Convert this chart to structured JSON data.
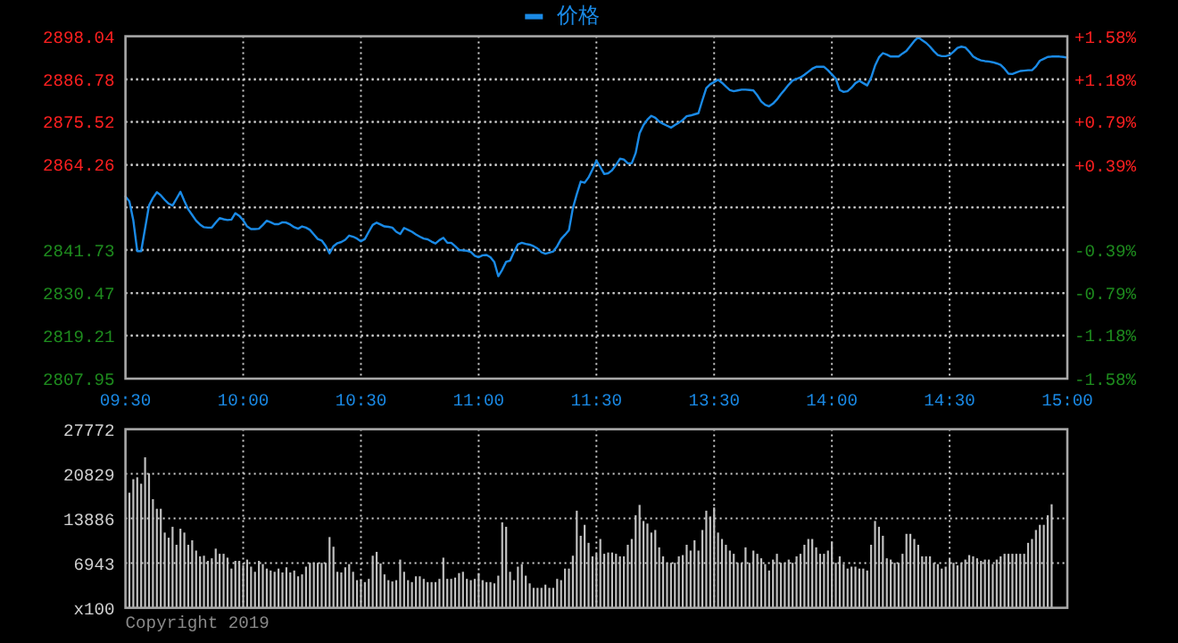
{
  "chart_data": [
    {
      "type": "line",
      "legend": "top",
      "grid": true,
      "categories": [
        "09:30",
        null,
        null,
        null,
        null,
        null,
        null,
        null,
        null,
        null,
        null,
        null,
        null,
        null,
        null,
        null,
        null,
        null,
        null,
        null,
        null,
        null,
        null,
        null,
        null,
        null,
        null,
        null,
        null,
        null,
        "10:00",
        null,
        null,
        null,
        null,
        null,
        null,
        null,
        null,
        null,
        null,
        null,
        null,
        null,
        null,
        null,
        null,
        null,
        null,
        null,
        null,
        null,
        null,
        null,
        null,
        null,
        null,
        null,
        null,
        null,
        "10:30",
        null,
        null,
        null,
        null,
        null,
        null,
        null,
        null,
        null,
        null,
        null,
        null,
        null,
        null,
        null,
        null,
        null,
        null,
        null,
        null,
        null,
        null,
        null,
        null,
        null,
        null,
        null,
        null,
        null,
        "11:00",
        null,
        null,
        null,
        null,
        null,
        null,
        null,
        null,
        null,
        null,
        null,
        null,
        null,
        null,
        null,
        null,
        null,
        null,
        null,
        null,
        null,
        null,
        null,
        null,
        null,
        null,
        null,
        null,
        null,
        "11:30",
        null,
        null,
        null,
        null,
        null,
        null,
        null,
        null,
        null,
        null,
        null,
        null,
        null,
        null,
        null,
        null,
        null,
        null,
        null,
        null,
        null,
        null,
        null,
        null,
        null,
        null,
        null,
        null,
        null,
        "13:30",
        null,
        null,
        null,
        null,
        null,
        null,
        null,
        null,
        null,
        null,
        null,
        null,
        null,
        null,
        null,
        null,
        null,
        null,
        null,
        null,
        null,
        null,
        null,
        null,
        null,
        null,
        null,
        null,
        null,
        "14:00",
        null,
        null,
        null,
        null,
        null,
        null,
        null,
        null,
        null,
        null,
        null,
        null,
        null,
        null,
        null,
        null,
        null,
        null,
        null,
        null,
        null,
        null,
        null,
        null,
        null,
        null,
        null,
        null,
        null,
        "14:30",
        null,
        null,
        null,
        null,
        null,
        null,
        null,
        null,
        null,
        null,
        null,
        null,
        null,
        null,
        null,
        null,
        null,
        null,
        null,
        null,
        null,
        null,
        null,
        null,
        null,
        null,
        null,
        null,
        null,
        "15:00"
      ],
      "series": [
        {
          "name": "价格",
          "color": "#1a8ae6",
          "values": [
            2855.9,
            2854.6,
            2849.6,
            2841.5,
            2841.5,
            2847.5,
            2853.5,
            2855.5,
            2857.0,
            2856.2,
            2855.0,
            2854.0,
            2853.5,
            2855.3,
            2857.1,
            2854.7,
            2852.5,
            2851.0,
            2849.5,
            2848.5,
            2847.8,
            2847.7,
            2847.7,
            2849.0,
            2850.2,
            2849.9,
            2849.7,
            2849.8,
            2851.5,
            2850.8,
            2849.6,
            2848.0,
            2847.3,
            2847.3,
            2847.4,
            2848.4,
            2849.5,
            2849.1,
            2848.6,
            2848.6,
            2849.1,
            2849.0,
            2848.5,
            2847.8,
            2847.4,
            2848.0,
            2847.7,
            2847.1,
            2845.9,
            2844.7,
            2844.3,
            2842.9,
            2840.9,
            2842.8,
            2843.6,
            2843.9,
            2844.5,
            2845.6,
            2845.3,
            2844.8,
            2844.1,
            2844.7,
            2846.6,
            2848.4,
            2849.0,
            2848.5,
            2848.0,
            2847.9,
            2847.7,
            2846.6,
            2846.0,
            2847.6,
            2847.1,
            2846.6,
            2845.9,
            2845.3,
            2844.8,
            2844.6,
            2844.0,
            2843.5,
            2844.4,
            2845.0,
            2843.7,
            2843.7,
            2842.8,
            2841.8,
            2841.7,
            2841.6,
            2841.3,
            2840.3,
            2839.9,
            2840.4,
            2840.5,
            2839.9,
            2838.6,
            2834.9,
            2836.6,
            2838.7,
            2839.0,
            2841.3,
            2843.3,
            2843.7,
            2843.4,
            2843.2,
            2842.8,
            2842.2,
            2841.2,
            2840.8,
            2841.1,
            2841.4,
            2842.8,
            2844.7,
            2845.8,
            2847.0,
            2852.8,
            2856.5,
            2859.8,
            2859.5,
            2860.9,
            2863.0,
            2865.3,
            2863.6,
            2861.8,
            2862.0,
            2862.8,
            2864.2,
            2865.8,
            2865.6,
            2864.6,
            2864.6,
            2867.3,
            2872.5,
            2874.7,
            2876.1,
            2877.1,
            2876.6,
            2875.6,
            2875.0,
            2874.5,
            2874.0,
            2874.7,
            2875.3,
            2876.0,
            2877.0,
            2877.2,
            2877.5,
            2877.8,
            2881.2,
            2884.4,
            2885.4,
            2886.0,
            2886.6,
            2885.8,
            2884.8,
            2883.9,
            2883.6,
            2883.8,
            2884.0,
            2884.0,
            2883.9,
            2883.8,
            2882.5,
            2880.9,
            2880.0,
            2879.6,
            2880.3,
            2881.4,
            2882.8,
            2884.0,
            2885.3,
            2886.4,
            2886.8,
            2887.2,
            2887.9,
            2888.7,
            2889.5,
            2890.0,
            2890.0,
            2890.0,
            2889.1,
            2888.0,
            2886.9,
            2883.9,
            2883.4,
            2883.6,
            2884.5,
            2885.7,
            2886.3,
            2885.7,
            2885.1,
            2887.1,
            2890.3,
            2892.5,
            2893.6,
            2893.2,
            2892.7,
            2892.7,
            2892.7,
            2893.5,
            2894.2,
            2895.5,
            2896.8,
            2897.8,
            2897.0,
            2896.3,
            2895.3,
            2894.1,
            2893.1,
            2892.8,
            2892.8,
            2893.1,
            2894.0,
            2895.0,
            2895.3,
            2895.1,
            2894.0,
            2892.7,
            2892.1,
            2891.7,
            2891.5,
            2891.4,
            2891.2,
            2890.9,
            2890.5,
            2889.5,
            2888.2,
            2888.1,
            2888.5,
            2888.9,
            2889.0,
            2889.1,
            2889.1,
            2890.1,
            2891.6,
            2892.1,
            2892.6,
            2892.7,
            2892.7,
            2892.7,
            2892.6,
            2892.4
          ]
        }
      ],
      "ylim": [
        2807.95,
        2898.04
      ],
      "yticks": [
        2807.95,
        2819.21,
        2830.47,
        2841.73,
        {
          "value": 2853.0,
          "label": null
        },
        2864.26,
        2875.52,
        2886.78,
        2898.04
      ],
      "y2lim": [
        -1.58,
        1.58
      ],
      "y2ticks": [
        {
          "value": -1.58,
          "label": "-1.58%"
        },
        {
          "value": -1.18,
          "label": "-1.18%"
        },
        {
          "value": -0.79,
          "label": "-0.79%"
        },
        {
          "value": -0.39,
          "label": "-0.39%"
        },
        {
          "value": 0,
          "label": null
        },
        {
          "value": 0.39,
          "label": "+0.39%"
        },
        {
          "value": 0.79,
          "label": "+0.79%"
        },
        {
          "value": 1.18,
          "label": "+1.18%"
        },
        {
          "value": 1.58,
          "label": "+1.58%"
        }
      ]
    },
    {
      "type": "bar",
      "grid": true,
      "color": "#c0c0c0",
      "tick_labels": "y",
      "categories": [
        null,
        null,
        null,
        null,
        null,
        null,
        null,
        null,
        null,
        null,
        null,
        null,
        null,
        null,
        null,
        null,
        null,
        null,
        null,
        null,
        null,
        null,
        null,
        null,
        null,
        null,
        null,
        null,
        null,
        null,
        null,
        null,
        null,
        null,
        null,
        null,
        null,
        null,
        null,
        null,
        null,
        null,
        null,
        null,
        null,
        null,
        null,
        null,
        null,
        null,
        null,
        null,
        null,
        null,
        null,
        null,
        null,
        null,
        null,
        null,
        null,
        null,
        null,
        null,
        null,
        null,
        null,
        null,
        null,
        null,
        null,
        null,
        null,
        null,
        null,
        null,
        null,
        null,
        null,
        null,
        null,
        null,
        null,
        null,
        null,
        null,
        null,
        null,
        null,
        null,
        null,
        null,
        null,
        null,
        null,
        null,
        null,
        null,
        null,
        null,
        null,
        null,
        null,
        null,
        null,
        null,
        null,
        null,
        null,
        null,
        null,
        null,
        null,
        null,
        null,
        null,
        null,
        null,
        null,
        null,
        null,
        null,
        null,
        null,
        null,
        null,
        null,
        null,
        null,
        null,
        null,
        null,
        null,
        null,
        null,
        null,
        null,
        null,
        null,
        null,
        null,
        null,
        null,
        null,
        null,
        null,
        null,
        null,
        null,
        null,
        null,
        null,
        null,
        null,
        null,
        null,
        null,
        null,
        null,
        null,
        null,
        null,
        null,
        null,
        null,
        null,
        null,
        null,
        null,
        null,
        null,
        null,
        null,
        null,
        null,
        null,
        null,
        null,
        null,
        null,
        null,
        null,
        null,
        null,
        null,
        null,
        null,
        null,
        null,
        null,
        null,
        null,
        null,
        null,
        null,
        null,
        null,
        null,
        null,
        null,
        null,
        null,
        null,
        null,
        null,
        null,
        null,
        null,
        null,
        null,
        null,
        null,
        null,
        null,
        null,
        null,
        null,
        null,
        null,
        null,
        null,
        null,
        null,
        null,
        null,
        null,
        null,
        null,
        null,
        null,
        null,
        null,
        null,
        null,
        null,
        null,
        null,
        null,
        null,
        null,
        null
      ],
      "values": [
        null,
        17900,
        20000,
        20300,
        19300,
        23400,
        20900,
        16900,
        15400,
        15400,
        11700,
        10900,
        12600,
        9800,
        12300,
        11700,
        9800,
        10500,
        8900,
        8000,
        8100,
        7300,
        7700,
        9200,
        8400,
        8400,
        7800,
        6100,
        7300,
        7300,
        6600,
        7500,
        6400,
        5600,
        7300,
        6800,
        6100,
        5800,
        5600,
        6100,
        5500,
        6300,
        5500,
        5800,
        4900,
        5200,
        6400,
        7000,
        7000,
        7000,
        7000,
        7000,
        11000,
        9500,
        5600,
        5500,
        6300,
        6800,
        5600,
        4300,
        4400,
        4000,
        4500,
        8100,
        8700,
        6900,
        5200,
        4300,
        4100,
        4300,
        7500,
        5600,
        4300,
        4000,
        4900,
        4900,
        4500,
        4000,
        4000,
        4000,
        4500,
        7800,
        4500,
        4500,
        4700,
        5400,
        5600,
        4500,
        4300,
        4500,
        5400,
        4300,
        4000,
        4000,
        3800,
        5000,
        13300,
        12600,
        5600,
        4300,
        6400,
        6800,
        5000,
        3800,
        3100,
        3100,
        3100,
        3600,
        3100,
        3100,
        4500,
        4300,
        6100,
        6100,
        8100,
        15100,
        11200,
        12900,
        10100,
        8000,
        8400,
        10700,
        8400,
        8600,
        8600,
        8400,
        8000,
        8000,
        9800,
        10700,
        14400,
        16000,
        13500,
        13100,
        11700,
        12100,
        9400,
        8000,
        7000,
        7000,
        7000,
        8000,
        8200,
        9800,
        8900,
        10500,
        8900,
        12100,
        15100,
        14200,
        15600,
        11700,
        10700,
        9800,
        8900,
        8400,
        7000,
        7000,
        9400,
        7000,
        8900,
        8400,
        7700,
        6800,
        5800,
        7500,
        8400,
        7000,
        7000,
        7500,
        7000,
        8000,
        8400,
        9800,
        10700,
        10700,
        9400,
        8400,
        8400,
        8900,
        10300,
        7000,
        8000,
        6800,
        6100,
        6400,
        6400,
        6100,
        6100,
        5800,
        9800,
        13500,
        12600,
        11200,
        7700,
        7500,
        7000,
        7000,
        8400,
        11500,
        11500,
        10700,
        9800,
        8000,
        8000,
        8000,
        7000,
        6800,
        6100,
        6400,
        7700,
        7000,
        6600,
        7000,
        7500,
        8200,
        8000,
        7700,
        7300,
        7500,
        7500,
        6800,
        7500,
        8000,
        8400,
        8400,
        8400,
        8400,
        8400,
        8400,
        10100,
        10700,
        12100,
        12900,
        12900,
        14400,
        16100,
        null,
        null,
        null,
        null
      ],
      "ylim": [
        0,
        27772
      ],
      "yticks": [
        {
          "value": 0,
          "label": "x100"
        },
        6943,
        13886,
        20829,
        27772
      ],
      "annotations": [
        "Copyright 2019"
      ]
    }
  ]
}
